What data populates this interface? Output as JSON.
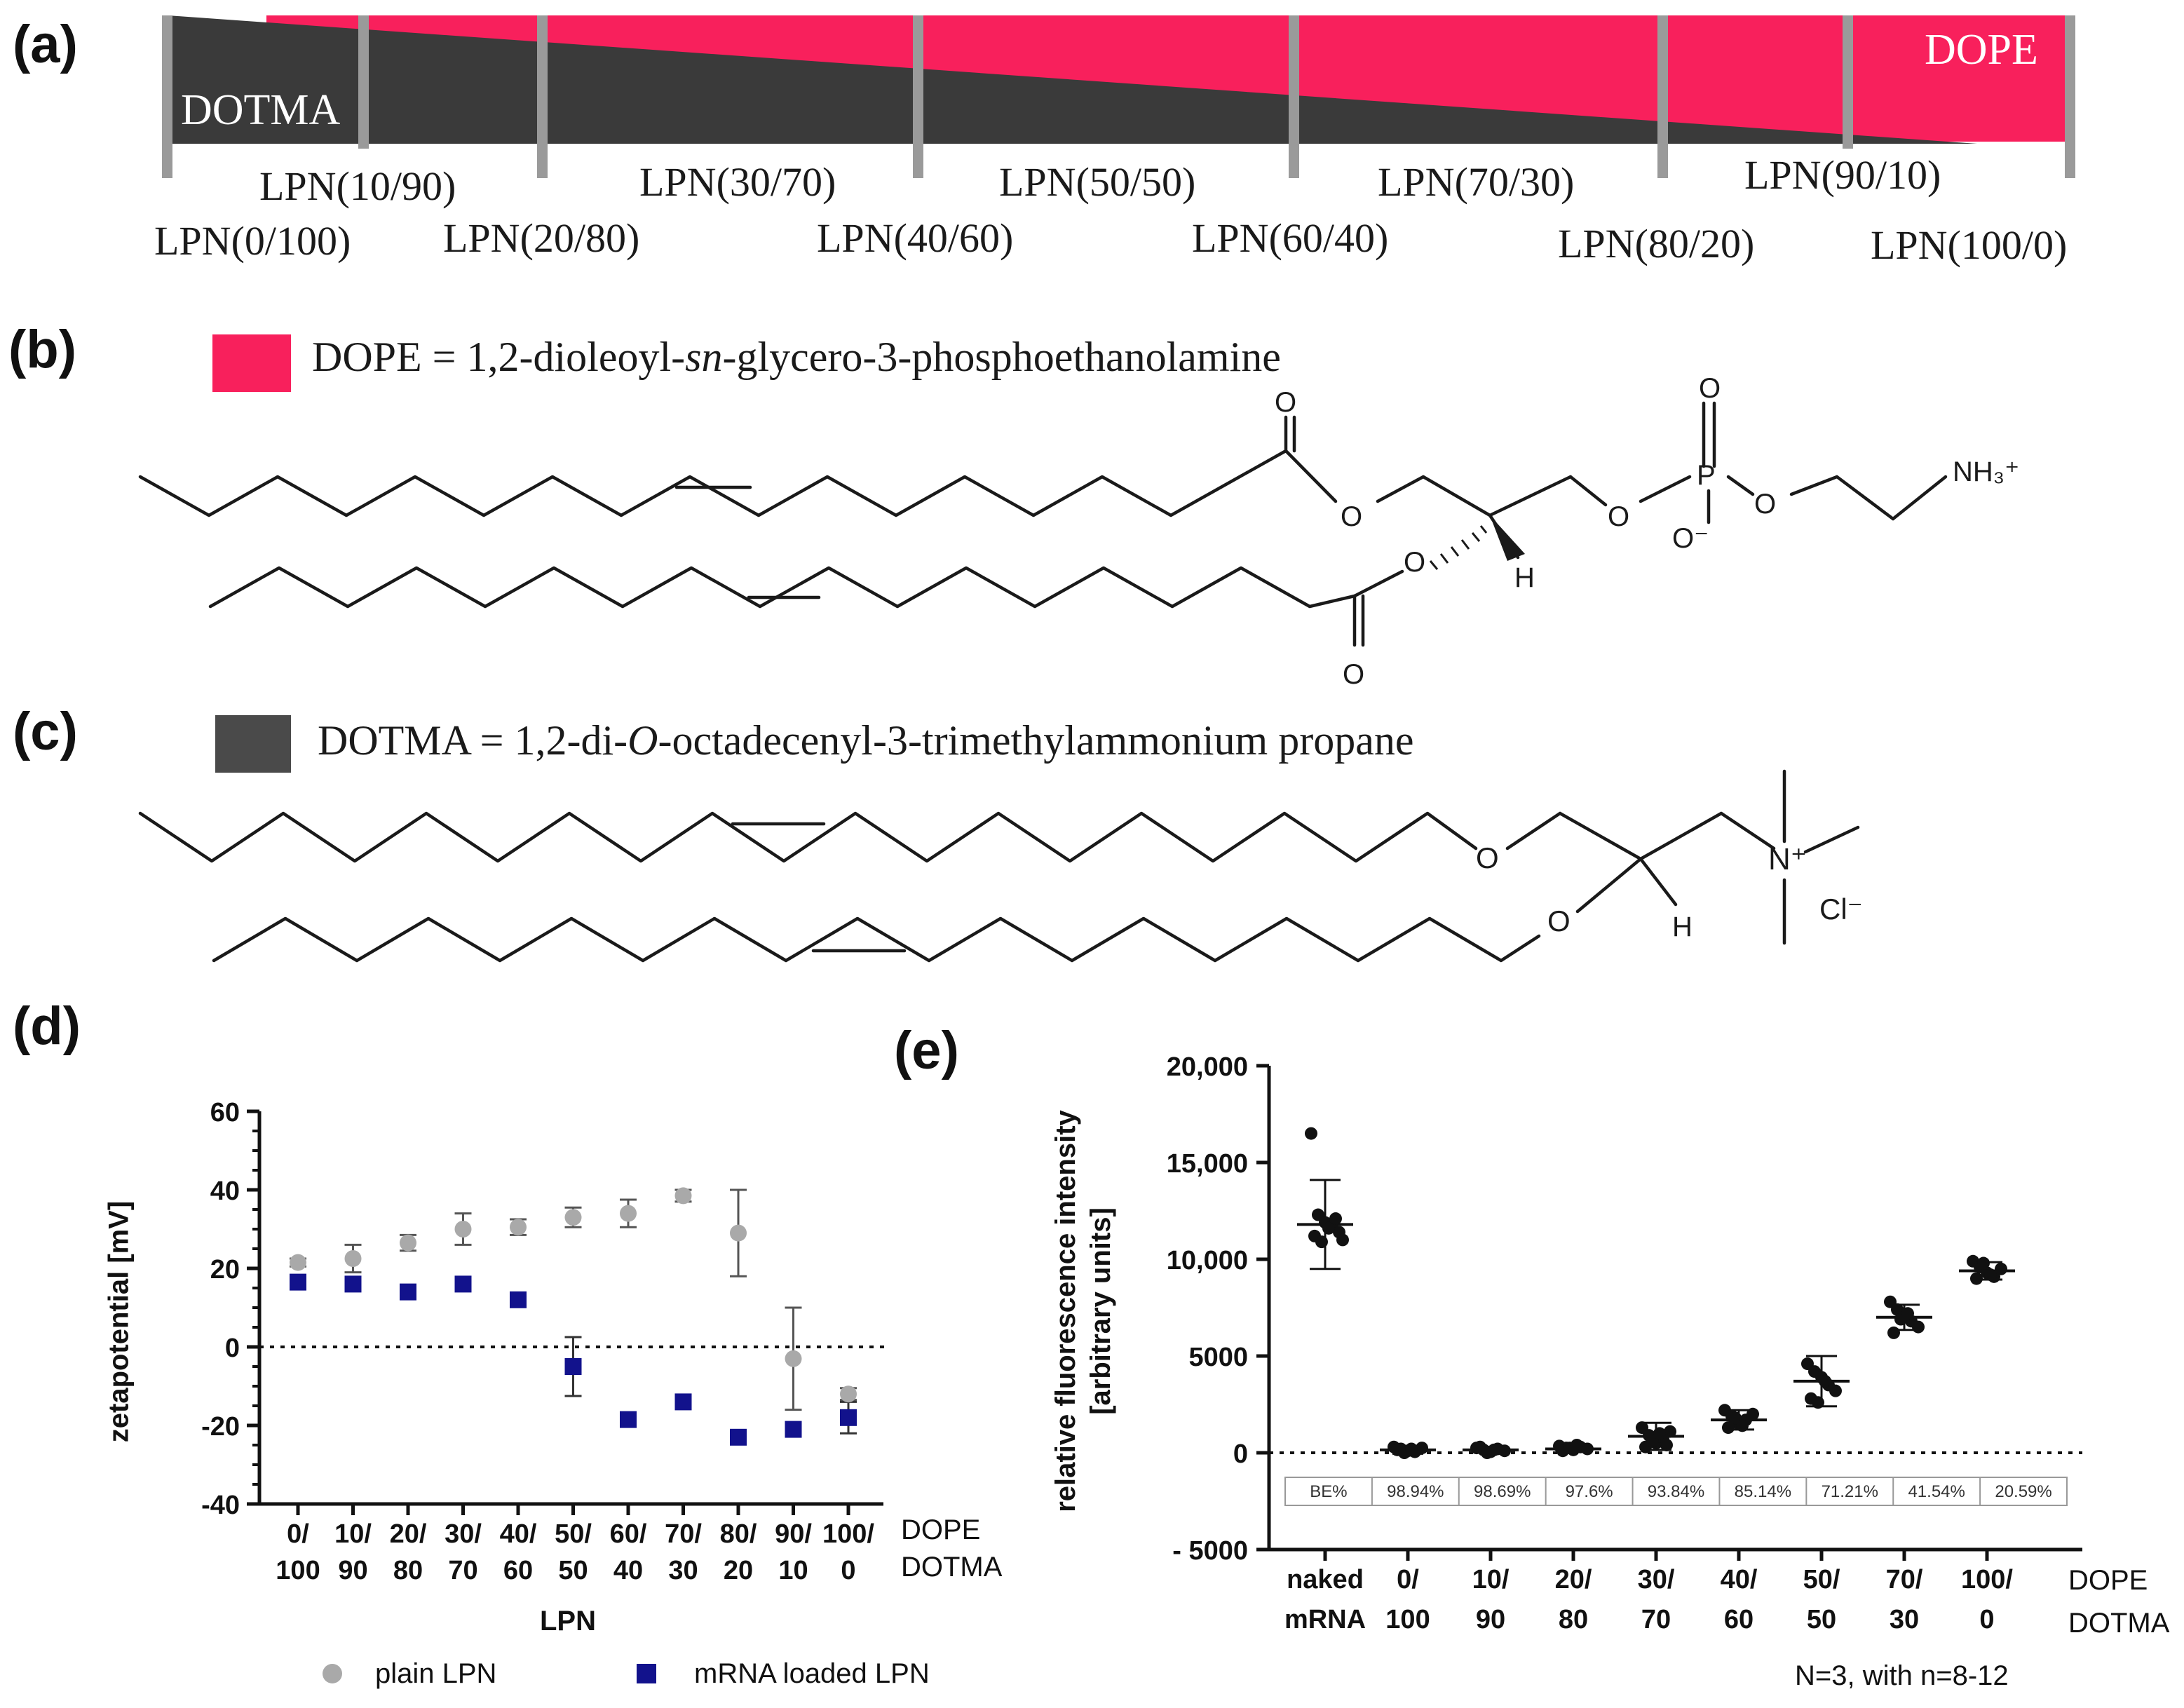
{
  "panel_labels": [
    "(a)",
    "(b)",
    "(c)",
    "(d)",
    "(e)"
  ],
  "colors": {
    "dope": "#f8205c",
    "dotma": "#3a3a3a",
    "plain": "#a9a9a9",
    "mrna": "#12128c",
    "marker_e": "#111111"
  },
  "panel_a": {
    "dotma_label": "DOTMA",
    "dope_label": "DOPE",
    "top_row": [
      "LPN(10/90)",
      "LPN(30/70)",
      "LPN(50/50)",
      "LPN(70/30)",
      "LPN(90/10)"
    ],
    "bottom_row": [
      "LPN(0/100)",
      "LPN(20/80)",
      "LPN(40/60)",
      "LPN(60/40)",
      "LPN(80/20)",
      "LPN(100/0)"
    ]
  },
  "panel_b": {
    "legend_prefix": "DOPE = 1,2-dioleoyl-",
    "legend_italic": "sn",
    "legend_suffix": "-glycero-3-phosphoethanolamine",
    "atoms": {
      "O": "O",
      "P": "P",
      "O_minus": "O⁻",
      "H": "H",
      "NH3": "NH₃⁺"
    }
  },
  "panel_c": {
    "legend_prefix": "DOTMA = 1,2-di-",
    "legend_italic": "O",
    "legend_suffix": "-octadecenyl-3-trimethylammonium propane",
    "atoms": {
      "O": "O",
      "H": "H",
      "N": "N⁺",
      "Cl": "Cl⁻"
    }
  },
  "chart_data": [
    {
      "id": "d",
      "type": "scatter",
      "ylabel": "zetapotential [mV]",
      "xlabel": "LPN",
      "ylim": [
        -40,
        60
      ],
      "yticks": [
        -40,
        -20,
        0,
        20,
        40,
        60
      ],
      "categories_top": [
        "0/",
        "10/",
        "20/",
        "30/",
        "40/",
        "50/",
        "60/",
        "70/",
        "80/",
        "90/",
        "100/"
      ],
      "categories_bottom": [
        "100",
        "90",
        "80",
        "70",
        "60",
        "50",
        "40",
        "30",
        "20",
        "10",
        "0"
      ],
      "row_labels": [
        "DOPE",
        "DOTMA"
      ],
      "reference_line": 0,
      "series": [
        {
          "name": "plain LPN",
          "marker": "circle",
          "values": [
            21.5,
            22.5,
            26.5,
            30,
            30.5,
            33,
            34,
            38.5,
            29,
            -3,
            -12
          ],
          "errors": [
            1,
            3.5,
            2,
            4,
            2,
            2.5,
            3.5,
            1.5,
            11,
            13,
            1.5
          ]
        },
        {
          "name": "mRNA loaded LPN",
          "marker": "square",
          "values": [
            16.5,
            16,
            14,
            16,
            12,
            -5,
            -18.5,
            -14,
            -23,
            -21,
            -18
          ],
          "errors": [
            0,
            0,
            0,
            0,
            0,
            7.5,
            0,
            0,
            0,
            0,
            4
          ]
        }
      ]
    },
    {
      "id": "e",
      "type": "scatter",
      "ylabel_line1": "relative fluorescence intensity",
      "ylabel_line2": "[arbitrary units]",
      "ylim": [
        -5000,
        20000
      ],
      "yticks": [
        -5000,
        0,
        5000,
        10000,
        15000,
        20000
      ],
      "ytick_labels": [
        "- 5000",
        "0",
        "5000",
        "10,000",
        "15,000",
        "20,000"
      ],
      "categories_top": [
        "naked",
        "0/",
        "10/",
        "20/",
        "30/",
        "40/",
        "50/",
        "70/",
        "100/"
      ],
      "categories_bottom": [
        "mRNA",
        "100",
        "90",
        "80",
        "70",
        "60",
        "50",
        "30",
        "0"
      ],
      "row_labels": [
        "DOPE",
        "DOTMA"
      ],
      "reference_line": 0,
      "means": [
        11800,
        150,
        150,
        200,
        850,
        1700,
        3700,
        7000,
        9400
      ],
      "sd": [
        2300,
        200,
        150,
        150,
        700,
        500,
        1300,
        650,
        450
      ],
      "points": [
        [
          16500,
          12300,
          11900,
          11700,
          11400,
          11200,
          10900,
          11600,
          12100,
          11000
        ],
        [
          300,
          200,
          100,
          50,
          250,
          150,
          0,
          200
        ],
        [
          250,
          150,
          50,
          200,
          100,
          300,
          0,
          150
        ],
        [
          350,
          250,
          150,
          300,
          200,
          100,
          250,
          400
        ],
        [
          1300,
          900,
          500,
          700,
          1100,
          300,
          600,
          1000,
          400
        ],
        [
          2200,
          1900,
          1500,
          1700,
          2000,
          1300,
          1800,
          1400
        ],
        [
          4600,
          4200,
          3900,
          3500,
          3200,
          2800,
          2600,
          3700
        ],
        [
          7800,
          7400,
          7100,
          6800,
          6500,
          6200,
          6900,
          7200
        ],
        [
          9900,
          9600,
          9300,
          9100,
          9500,
          9000,
          9800,
          9200
        ]
      ],
      "be_table": [
        "BE%",
        "98.94%",
        "98.69%",
        "97.6%",
        "93.84%",
        "85.14%",
        "71.21%",
        "41.54%",
        "20.59%"
      ],
      "footnote": "N=3, with n=8-12"
    }
  ]
}
